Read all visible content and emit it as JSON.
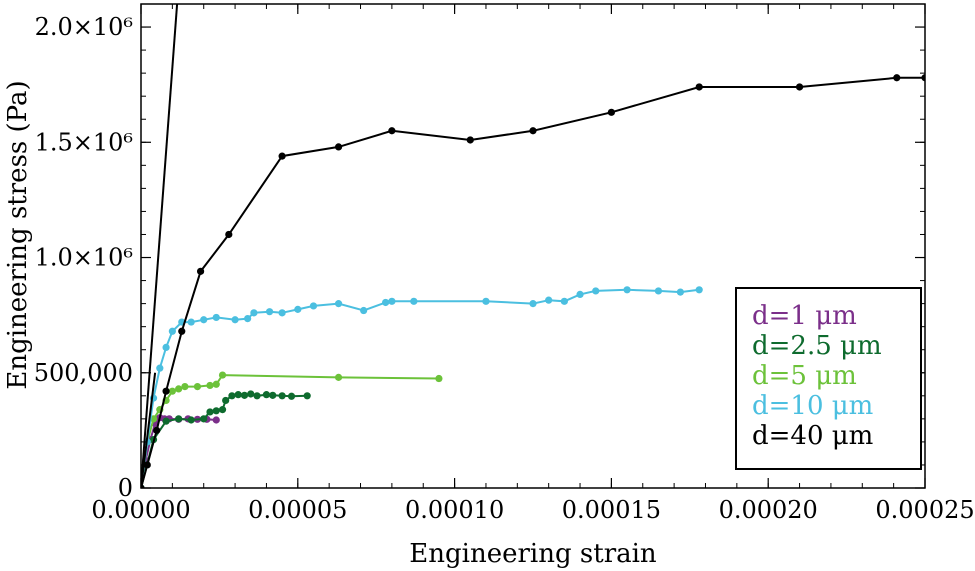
{
  "chart_data": {
    "type": "line",
    "title": "",
    "xlabel": "Engineering strain",
    "ylabel": "Engineering stress (Pa)",
    "xlim": [
      0,
      0.00025
    ],
    "ylim": [
      0,
      2100000
    ],
    "grid": false,
    "legend_position": "lower-right",
    "x_ticks": [
      0,
      5e-05,
      0.0001,
      0.00015,
      0.0002,
      0.00025
    ],
    "x_tick_labels": [
      "0.00000",
      "0.00005",
      "0.00010",
      "0.00015",
      "0.00020",
      "0.00025"
    ],
    "y_ticks": [
      0,
      500000,
      1000000,
      1500000,
      2000000
    ],
    "y_tick_labels": [
      "0",
      "500,000",
      "1.0×10⁶",
      "1.5×10⁶",
      "2.0×10⁶"
    ],
    "series": [
      {
        "name": "d=1 μm",
        "color": "#7b2f8a",
        "x": [
          0,
          1.5e-06,
          3e-06,
          4.5e-06,
          6e-06,
          7.5e-06,
          9e-06,
          1.2e-05,
          1.5e-05,
          1.8e-05,
          2.1e-05,
          2.4e-05
        ],
        "y": [
          0,
          120000,
          210000,
          280000,
          305000,
          300000,
          300000,
          298000,
          300000,
          298000,
          298000,
          295000
        ]
      },
      {
        "name": "d=2.5 μm",
        "color": "#0e6b2e",
        "x": [
          0,
          4e-06,
          8e-06,
          1.2e-05,
          1.6e-05,
          2e-05,
          2.2e-05,
          2.4e-05,
          2.6e-05,
          2.7e-05,
          2.9e-05,
          3.1e-05,
          3.3e-05,
          3.5e-05,
          3.7e-05,
          4e-05,
          4.2e-05,
          4.5e-05,
          4.8e-05,
          5.3e-05
        ],
        "y": [
          0,
          210000,
          290000,
          300000,
          295000,
          300000,
          330000,
          335000,
          340000,
          380000,
          400000,
          405000,
          402000,
          408000,
          400000,
          405000,
          402000,
          400000,
          398000,
          400000
        ]
      },
      {
        "name": "d=5 μm",
        "color": "#6cc23a",
        "x": [
          0,
          2e-06,
          4e-06,
          6e-06,
          8e-06,
          1e-05,
          1.2e-05,
          1.4e-05,
          1.8e-05,
          2.2e-05,
          2.4e-05,
          2.6e-05,
          6.3e-05,
          9.5e-05
        ],
        "y": [
          0,
          200000,
          300000,
          340000,
          380000,
          420000,
          430000,
          440000,
          440000,
          445000,
          450000,
          490000,
          480000,
          475000
        ]
      },
      {
        "name": "d=10 μm",
        "color": "#4bbfe0",
        "x": [
          0,
          2e-06,
          4e-06,
          6e-06,
          8e-06,
          1e-05,
          1.3e-05,
          1.6e-05,
          2e-05,
          2.4e-05,
          3e-05,
          3.4e-05,
          3.6e-05,
          4.1e-05,
          4.5e-05,
          5e-05,
          5.5e-05,
          6.3e-05,
          7.1e-05,
          7.8e-05,
          8e-05,
          8.7e-05,
          0.00011,
          0.000125,
          0.00013,
          0.000135,
          0.00014,
          0.000145,
          0.000155,
          0.000165,
          0.000172,
          0.000178
        ],
        "y": [
          0,
          200000,
          390000,
          520000,
          610000,
          680000,
          720000,
          720000,
          730000,
          740000,
          730000,
          735000,
          760000,
          765000,
          760000,
          775000,
          790000,
          800000,
          770000,
          805000,
          810000,
          810000,
          810000,
          800000,
          815000,
          810000,
          840000,
          855000,
          860000,
          855000,
          850000,
          860000
        ]
      },
      {
        "name": "d=40 μm",
        "color": "#000000",
        "x": [
          0,
          2e-06,
          5e-06,
          8e-06,
          1.3e-05,
          1.9e-05,
          2.8e-05,
          4.5e-05,
          6.3e-05,
          8e-05,
          0.000105,
          0.000125,
          0.00015,
          0.000178,
          0.00021,
          0.000241,
          0.00025
        ],
        "y": [
          0,
          100000,
          250000,
          420000,
          680000,
          940000,
          1100000,
          1440000,
          1480000,
          1550000,
          1510000,
          1550000,
          1630000,
          1740000,
          1740000,
          1780000,
          1780000
        ]
      },
      {
        "name": "",
        "color": "#000000",
        "markers": false,
        "x": [
          0,
          1.15e-05
        ],
        "y": [
          0,
          2100000
        ]
      },
      {
        "name": "",
        "color": "#000000",
        "markers": false,
        "x": [
          0,
          4.5e-06
        ],
        "y": [
          0,
          500000
        ]
      }
    ]
  }
}
